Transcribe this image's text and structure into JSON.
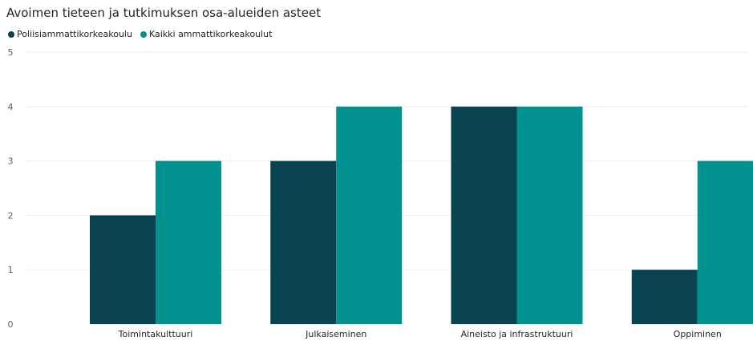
{
  "chart_data": {
    "type": "bar",
    "title": "Avoimen tieteen ja tutkimuksen osa-alueiden asteet",
    "categories": [
      "Toimintakulttuuri",
      "Julkaiseminen",
      "Aineisto ja infrastruktuuri",
      "Oppiminen"
    ],
    "series": [
      {
        "name": "Poliisiammattikorkeakoulu",
        "values": [
          2,
          3,
          4,
          1
        ],
        "color": "#08434f"
      },
      {
        "name": "Kaikki ammattikorkeakoulut",
        "values": [
          3,
          4,
          4,
          3
        ],
        "color": "#01918f"
      }
    ],
    "y_ticks": [
      "0",
      "1",
      "2",
      "3",
      "4",
      "5"
    ],
    "ylim": [
      0,
      5
    ],
    "xlabel": "",
    "ylabel": "",
    "grid": true,
    "legend_position": "top-left"
  }
}
